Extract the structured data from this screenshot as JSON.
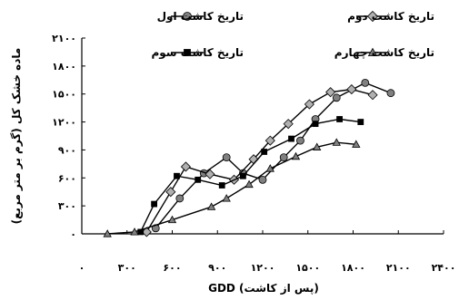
{
  "chart_data": {
    "type": "line",
    "xlabel": "GDD (پس از کاشت)",
    "ylabel": "ماده خشک کل (گرم بر متر مربع)",
    "xlim": [
      0,
      2400
    ],
    "ylim": [
      0,
      2100
    ],
    "x_ticks": [
      {
        "value": 0,
        "label": "۰"
      },
      {
        "value": 300,
        "label": "۳۰۰"
      },
      {
        "value": 600,
        "label": "۶۰۰"
      },
      {
        "value": 900,
        "label": "۹۰۰"
      },
      {
        "value": 1200,
        "label": "۱۲۰۰"
      },
      {
        "value": 1500,
        "label": "۱۵۰۰"
      },
      {
        "value": 1800,
        "label": "۱۸۰۰"
      },
      {
        "value": 2100,
        "label": "۲۱۰۰"
      },
      {
        "value": 2400,
        "label": "۲۴۰۰"
      }
    ],
    "y_ticks": [
      {
        "value": 0,
        "label": "۰"
      },
      {
        "value": 300,
        "label": "۳۰۰"
      },
      {
        "value": 600,
        "label": "۶۰۰"
      },
      {
        "value": 900,
        "label": "۹۰۰"
      },
      {
        "value": 1200,
        "label": "۱۲۰۰"
      },
      {
        "value": 1500,
        "label": "۱۵۰۰"
      },
      {
        "value": 1800,
        "label": "۱۸۰۰"
      },
      {
        "value": 2100,
        "label": "۲۱۰۰"
      }
    ],
    "grid": false,
    "legend_position": "top",
    "series": [
      {
        "name": "تاریخ کاشت اول",
        "marker": "circle",
        "color": "#808080",
        "x": [
          490,
          650,
          810,
          960,
          1070,
          1200,
          1340,
          1450,
          1550,
          1690,
          1880,
          2050
        ],
        "y": [
          60,
          380,
          650,
          820,
          650,
          580,
          820,
          1000,
          1230,
          1460,
          1620,
          1510
        ]
      },
      {
        "name": "تاریخ کاشت دوم",
        "marker": "diamond",
        "color": "#b0b0b0",
        "x": [
          430,
          590,
          690,
          850,
          1010,
          1140,
          1250,
          1370,
          1510,
          1650,
          1790,
          1930
        ],
        "y": [
          20,
          450,
          720,
          640,
          580,
          800,
          1000,
          1180,
          1390,
          1520,
          1550,
          1490
        ]
      },
      {
        "name": "تاریخ کاشت سوم",
        "marker": "square",
        "color": "#000000",
        "x": [
          390,
          480,
          630,
          770,
          930,
          1070,
          1210,
          1390,
          1550,
          1710,
          1850
        ],
        "y": [
          20,
          320,
          620,
          580,
          520,
          620,
          880,
          1020,
          1180,
          1230,
          1200
        ]
      },
      {
        "name": "تاریخ کاشت چهارم",
        "marker": "triangle",
        "color": "#808080",
        "x": [
          170,
          350,
          600,
          860,
          960,
          1110,
          1250,
          1420,
          1560,
          1690,
          1820
        ],
        "y": [
          0,
          20,
          150,
          290,
          380,
          530,
          700,
          830,
          930,
          980,
          960
        ]
      }
    ]
  }
}
